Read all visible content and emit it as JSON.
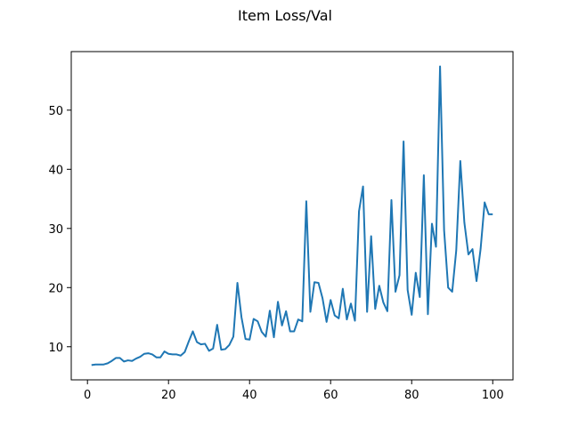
{
  "chart_data": {
    "type": "line",
    "title": "Item Loss/Val",
    "xlabel": "",
    "ylabel": "",
    "xlim": [
      -4,
      105
    ],
    "ylim": [
      4.4,
      59.9
    ],
    "xticks": [
      0,
      20,
      40,
      60,
      80,
      100
    ],
    "yticks": [
      10,
      20,
      30,
      40,
      50
    ],
    "grid": false,
    "line_color": "#1f77b4",
    "series": [
      {
        "x": [
          1,
          2,
          3,
          4,
          5,
          6,
          7,
          8,
          9,
          10,
          11,
          12,
          13,
          14,
          15,
          16,
          17,
          18,
          19,
          20,
          21,
          22,
          23,
          24,
          25,
          26,
          27,
          28,
          29,
          30,
          31,
          32,
          33,
          34,
          35,
          36,
          37,
          38,
          39,
          40,
          41,
          42,
          43,
          44,
          45,
          46,
          47,
          48,
          49,
          50,
          51,
          52,
          53,
          54,
          55,
          56,
          57,
          58,
          59,
          60,
          61,
          62,
          63,
          64,
          65,
          66,
          67,
          68,
          69,
          70,
          71,
          72,
          73,
          74,
          75,
          76,
          77,
          78,
          79,
          80,
          81,
          82,
          83,
          84,
          85,
          86,
          87,
          88,
          89,
          90,
          91,
          92,
          93,
          94,
          95,
          96,
          97,
          98,
          99,
          100
        ],
        "values": [
          6.9,
          7.0,
          7.0,
          7.0,
          7.2,
          7.6,
          8.1,
          8.1,
          7.5,
          7.7,
          7.6,
          8.0,
          8.3,
          8.8,
          8.9,
          8.7,
          8.2,
          8.2,
          9.2,
          8.8,
          8.7,
          8.7,
          8.5,
          9.1,
          10.9,
          12.6,
          10.8,
          10.4,
          10.5,
          9.3,
          9.7,
          13.7,
          9.5,
          9.6,
          10.3,
          11.7,
          20.8,
          15.0,
          11.3,
          11.2,
          14.7,
          14.3,
          12.5,
          11.7,
          16.1,
          11.6,
          17.6,
          13.6,
          16.0,
          12.6,
          12.6,
          14.6,
          14.3,
          34.6,
          15.9,
          20.9,
          20.8,
          18.2,
          14.2,
          17.9,
          15.3,
          14.8,
          19.8,
          14.6,
          17.3,
          14.4,
          32.9,
          37.1,
          15.9,
          28.7,
          16.4,
          20.3,
          17.5,
          16.0,
          34.8,
          19.3,
          22.1,
          44.7,
          19.6,
          15.4,
          22.5,
          18.4,
          39.0,
          15.5,
          30.8,
          26.9,
          57.4,
          29.7,
          20.0,
          19.3,
          26.3,
          41.4,
          31.0,
          25.6,
          26.5,
          21.1,
          26.5,
          34.4,
          32.4,
          32.4
        ]
      }
    ]
  }
}
